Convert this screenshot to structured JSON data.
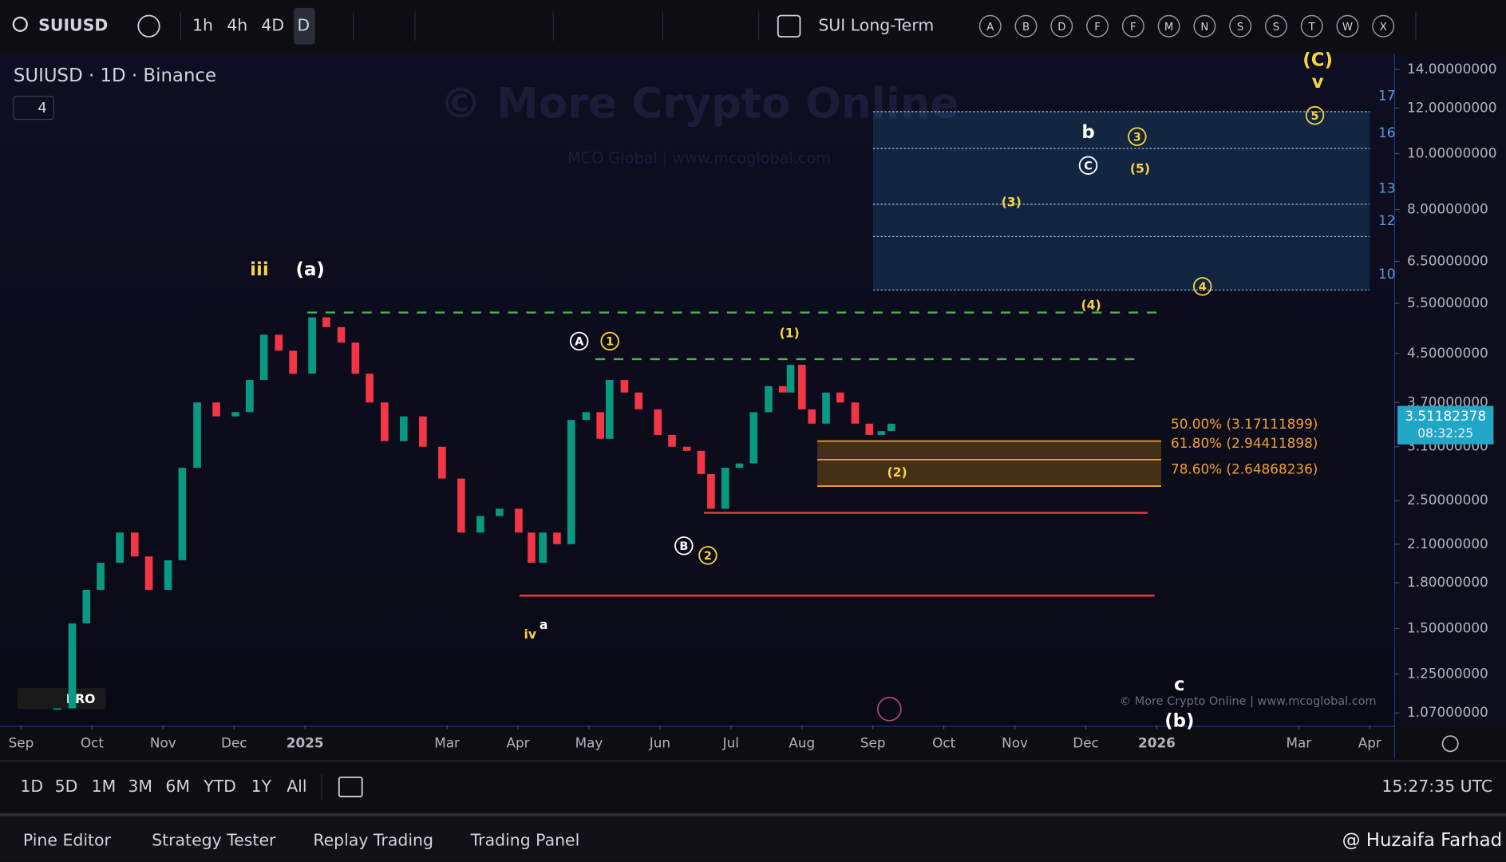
{
  "toolbar": {
    "symbol": "SUIUSD",
    "intervals": [
      "1h",
      "4h",
      "4D",
      "D"
    ],
    "layout_name": "SUI Long-Term",
    "letters": [
      "A",
      "B",
      "D",
      "F",
      "F",
      "M",
      "N",
      "S",
      "S",
      "T",
      "W",
      "X"
    ]
  },
  "chart_data": {
    "type": "candlestick",
    "title": "SUIUSD · 1D · Binance",
    "collapsed_count": 4,
    "watermark": "© More Crypto Online",
    "watermark_sub": "MCO Global  |  www.mcoglobal.com",
    "credit": "© More Crypto Online  |  www.mcoglobal.com",
    "logo": "PRO",
    "x": [
      0.51,
      0.72,
      0.92,
      1.12,
      1.39,
      1.6,
      1.8,
      2.07,
      2.27,
      2.48,
      2.75,
      3.02,
      3.22,
      3.42,
      3.63,
      3.83,
      4.1,
      4.3,
      4.51,
      4.71,
      4.91,
      5.12,
      5.39,
      5.66,
      5.93,
      6.2,
      6.47,
      6.74,
      7.01,
      7.19,
      7.35,
      7.55,
      7.75,
      7.96,
      8.16,
      8.29,
      8.5,
      8.7,
      8.97,
      9.17,
      9.38,
      9.58,
      9.72,
      9.92,
      10.12,
      10.32,
      10.53,
      10.73,
      10.84,
      11.0,
      11.14,
      11.34,
      11.54,
      11.75,
      11.95,
      12.12,
      12.26
    ],
    "values": [
      1.09,
      1.53,
      1.75,
      1.95,
      2.2,
      2.0,
      1.75,
      1.97,
      2.85,
      3.7,
      3.5,
      3.56,
      4.05,
      4.85,
      4.55,
      4.15,
      5.2,
      5.0,
      4.7,
      4.15,
      3.7,
      3.17,
      3.5,
      3.1,
      2.73,
      2.2,
      2.35,
      2.42,
      2.2,
      1.95,
      2.2,
      2.1,
      3.45,
      3.56,
      3.2,
      4.05,
      3.85,
      3.6,
      3.25,
      3.1,
      3.05,
      2.78,
      2.42,
      2.85,
      2.9,
      3.56,
      3.95,
      3.85,
      4.3,
      3.6,
      3.4,
      3.85,
      3.7,
      3.4,
      3.25,
      3.3,
      3.4
    ],
    "up_color": "#089981",
    "down_color": "#f23645",
    "log_scale": true,
    "xlim": [
      -0.23,
      19.35
    ],
    "xticks": [
      {
        "value": 0,
        "label": "Sep"
      },
      {
        "value": 1,
        "label": "Oct"
      },
      {
        "value": 2,
        "label": "Nov"
      },
      {
        "value": 3,
        "label": "Dec"
      },
      {
        "value": 4,
        "label": "2025"
      },
      {
        "value": 6,
        "label": "Mar"
      },
      {
        "value": 7,
        "label": "Apr"
      },
      {
        "value": 8,
        "label": "May"
      },
      {
        "value": 9,
        "label": "Jun"
      },
      {
        "value": 10,
        "label": "Jul"
      },
      {
        "value": 11,
        "label": "Aug"
      },
      {
        "value": 12,
        "label": "Sep"
      },
      {
        "value": 13,
        "label": "Oct"
      },
      {
        "value": 14,
        "label": "Nov"
      },
      {
        "value": 15,
        "label": "Dec"
      },
      {
        "value": 16,
        "label": "2026"
      },
      {
        "value": 18,
        "label": "Mar"
      },
      {
        "value": 19,
        "label": "Apr"
      }
    ],
    "ylim": [
      1.018,
      14.78
    ],
    "yticks": [
      {
        "value": 14,
        "label": "14.00000000"
      },
      {
        "value": 12,
        "label": "12.00000000"
      },
      {
        "value": 10,
        "label": "10.00000000"
      },
      {
        "value": 8,
        "label": "8.00000000"
      },
      {
        "value": 6.5,
        "label": "6.50000000"
      },
      {
        "value": 5.5,
        "label": "5.50000000"
      },
      {
        "value": 4.5,
        "label": "4.50000000"
      },
      {
        "value": 3.7,
        "label": "3.70000000"
      },
      {
        "value": 3.1,
        "label": "3.10000000"
      },
      {
        "value": 2.5,
        "label": "2.50000000"
      },
      {
        "value": 2.1,
        "label": "2.10000000"
      },
      {
        "value": 1.8,
        "label": "1.80000000"
      },
      {
        "value": 1.5,
        "label": "1.50000000"
      },
      {
        "value": 1.25,
        "label": "1.25000000"
      },
      {
        "value": 1.07,
        "label": "1.07000000"
      }
    ],
    "last_price": 3.51182378,
    "countdown": "08:32:25",
    "levels": [
      {
        "value": 5.3,
        "color": "#4caf50"
      },
      {
        "value": 4.4,
        "color": "#4caf50"
      },
      {
        "value": 2.38,
        "color": "#f23645"
      },
      {
        "value": 1.71,
        "color": "#f23645"
      }
    ],
    "fib": [
      {
        "label": "50.00% (3.17111899)",
        "value": 3.17111899
      },
      {
        "label": "61.80% (2.94411898)",
        "value": 2.94411898
      },
      {
        "label": "78.60% (2.64868236)",
        "value": 2.64868236
      }
    ],
    "targets": [
      {
        "label": "17",
        "value": 11.83
      },
      {
        "label": "16",
        "value": 10.21
      },
      {
        "label": "13",
        "value": 8.17
      },
      {
        "label": "12",
        "value": 7.18
      },
      {
        "label": "10",
        "value": 5.8
      }
    ],
    "waves": [
      "iii",
      "(a)",
      "A",
      "1",
      "(1)",
      "B",
      "2",
      "iv",
      "a",
      "b",
      "3",
      "C",
      "(5)",
      "(3)",
      "4",
      "(4)",
      "(2)",
      "(C)",
      "v",
      "5",
      "c",
      "(b)"
    ]
  },
  "range_bar": {
    "ranges": [
      "1D",
      "5D",
      "1M",
      "3M",
      "6M",
      "YTD",
      "1Y",
      "All"
    ],
    "clock": "15:27:35 UTC"
  },
  "tabs": [
    "Pine Editor",
    "Strategy Tester",
    "Replay Trading",
    "Trading Panel"
  ],
  "user_mark": "@ Huzaifa Farhad"
}
